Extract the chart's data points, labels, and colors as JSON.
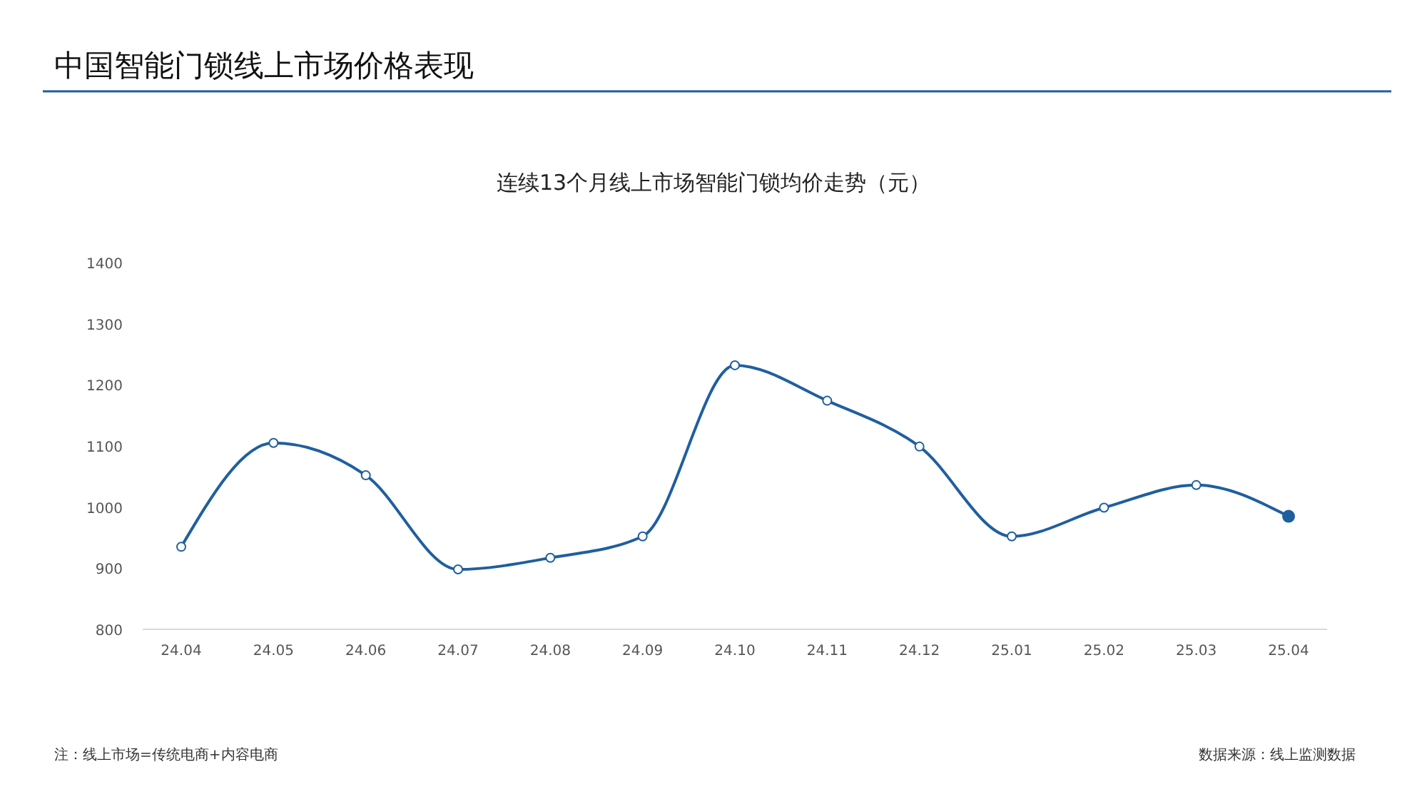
{
  "chart_data": {
    "type": "line",
    "title": "中国智能门锁线上市场价格表现",
    "subtitle": "连续13个月线上市场智能门锁均价走势（元）",
    "categories": [
      "24.04",
      "24.05",
      "24.06",
      "24.07",
      "24.08",
      "24.09",
      "24.10",
      "24.11",
      "24.12",
      "25.01",
      "25.02",
      "25.03",
      "25.04"
    ],
    "series": [
      {
        "color": "#1f5f9e",
        "values": [
          935,
          1105,
          1052,
          898,
          917,
          952,
          1232,
          1174,
          1099,
          952,
          999,
          1036,
          985
        ]
      }
    ],
    "ylim": [
      800,
      1400
    ],
    "yticks": [
      800,
      900,
      1000,
      1100,
      1200,
      1300,
      1400
    ],
    "grid": false,
    "marker": "circle",
    "line_style": "solid",
    "annotations": [
      "注：线上市场=传统电商+内容电商",
      "数据来源：线上监测数据"
    ]
  }
}
